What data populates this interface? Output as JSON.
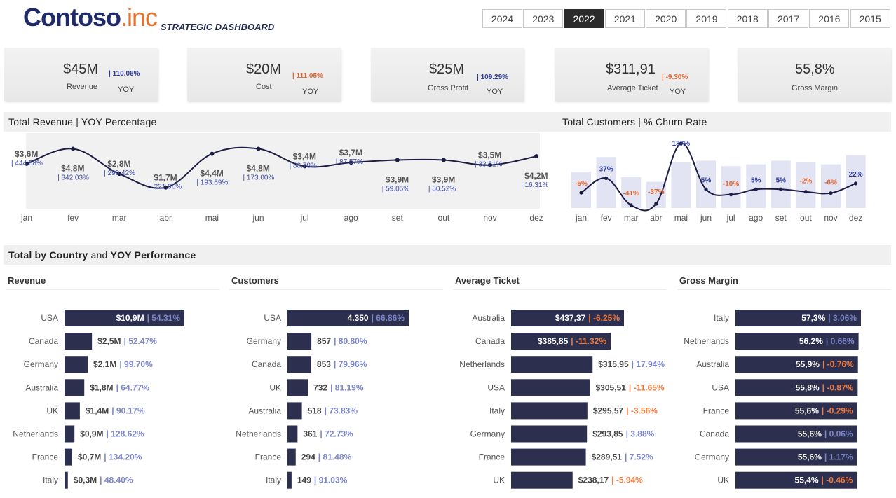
{
  "header": {
    "logo_brand": "Contoso",
    "logo_suffix": ".inc",
    "subtitle": "STRATEGIC DASHBOARD",
    "years": [
      "2024",
      "2023",
      "2022",
      "2021",
      "2020",
      "2019",
      "2018",
      "2017",
      "2016",
      "2015"
    ],
    "active_year": "2022"
  },
  "kpis": [
    {
      "value": "$45M",
      "label": "Revenue",
      "pct": "| 110.06%",
      "pct_dir": "pos",
      "yoy": "YOY"
    },
    {
      "value": "$20M",
      "label": "Cost",
      "pct": "| 111.05%",
      "pct_dir": "neg",
      "yoy": "YOY"
    },
    {
      "value": "$25M",
      "label": "Gross Profit",
      "pct": "| 109.29%",
      "pct_dir": "pos",
      "yoy": "YOY"
    },
    {
      "value": "$311,91",
      "label": "Average Ticket",
      "pct": "| -9.30%",
      "pct_dir": "neg",
      "yoy": "YOY"
    },
    {
      "value": "55,8%",
      "label": "Gross Margin"
    }
  ],
  "sections": {
    "revenue_title": "Total Revenue | YOY Percentage",
    "customers_title": "Total Customers | % Churn Rate",
    "country_title_bold1": "Total by Country",
    "country_title_mid": " and ",
    "country_title_bold2": "YOY Performance"
  },
  "colors": {
    "bar": "#2d2f4f",
    "pos": "#7b86c9",
    "neg": "#f07a3e",
    "line": "#1c1c45",
    "churn_bar": "#e2e4f4"
  },
  "chart_data": [
    {
      "type": "line",
      "title": "Total Revenue | YOY Percentage",
      "categories": [
        "jan",
        "fev",
        "mar",
        "abr",
        "mai",
        "jun",
        "jul",
        "ago",
        "set",
        "out",
        "nov",
        "dez"
      ],
      "values": [
        3.6,
        4.8,
        2.8,
        1.7,
        4.4,
        4.8,
        3.4,
        3.7,
        3.9,
        3.9,
        3.5,
        4.2
      ],
      "value_labels": [
        "$3,6M",
        "$4,8M",
        "$2,8M",
        "$1,7M",
        "$4,4M",
        "$4,8M",
        "$3,4M",
        "$3,7M",
        "$3,9M",
        "$3,9M",
        "$3,5M",
        "$4,2M"
      ],
      "yoy_labels": [
        "| 444.58%",
        "| 342.03%",
        "| 290.42%",
        "| 221.96%",
        "| 193.69%",
        "| 173.00%",
        "| 88.78%",
        "| 87.57%",
        "| 59.05%",
        "| 50.52%",
        "| 33.51%",
        "| 16.31%"
      ],
      "ylim": [
        0,
        5.5
      ]
    },
    {
      "type": "bar",
      "title": "Total Customers | % Churn Rate",
      "categories": [
        "jan",
        "fev",
        "mar",
        "abr",
        "mai",
        "jun",
        "jul",
        "ago",
        "set",
        "out",
        "nov",
        "dez"
      ],
      "customer_bars": [
        1.0,
        1.4,
        0.85,
        0.72,
        1.25,
        1.3,
        1.15,
        1.2,
        1.3,
        1.25,
        1.2,
        1.45
      ],
      "churn_pct": [
        -5,
        37,
        -41,
        -37,
        137,
        5,
        -10,
        5,
        5,
        -2,
        -6,
        22
      ],
      "churn_labels": [
        "-5%",
        "37%",
        "-41%",
        "-37%",
        "137%",
        "5%",
        "-10%",
        "5%",
        "5%",
        "-2%",
        "-6%",
        "22%"
      ]
    }
  ],
  "panels": [
    {
      "title": "Revenue",
      "rows": [
        {
          "name": "USA",
          "frac": 1.0,
          "val": "$10,9M",
          "pct": "| 54.31%",
          "dir": "pos"
        },
        {
          "name": "Canada",
          "frac": 0.229,
          "val": "$2,5M",
          "pct": "| 52.47%",
          "dir": "pos"
        },
        {
          "name": "Germany",
          "frac": 0.193,
          "val": "$2,1M",
          "pct": "| 99.70%",
          "dir": "pos"
        },
        {
          "name": "Australia",
          "frac": 0.165,
          "val": "$1,8M",
          "pct": "| 64.77%",
          "dir": "pos"
        },
        {
          "name": "UK",
          "frac": 0.128,
          "val": "$1,4M",
          "pct": "| 90.17%",
          "dir": "pos"
        },
        {
          "name": "Netherlands",
          "frac": 0.083,
          "val": "$0,9M",
          "pct": "| 128.62%",
          "dir": "pos"
        },
        {
          "name": "France",
          "frac": 0.064,
          "val": "$0,7M",
          "pct": "| 134.20%",
          "dir": "pos"
        },
        {
          "name": "Italy",
          "frac": 0.028,
          "val": "$0,3M",
          "pct": "| 48.40%",
          "dir": "pos"
        }
      ]
    },
    {
      "title": "Customers",
      "rows": [
        {
          "name": "USA",
          "frac": 1.0,
          "val": "4.350",
          "pct": "| 66.86%",
          "dir": "pos"
        },
        {
          "name": "Germany",
          "frac": 0.197,
          "val": "857",
          "pct": "| 80.80%",
          "dir": "pos"
        },
        {
          "name": "Canada",
          "frac": 0.196,
          "val": "853",
          "pct": "| 79.96%",
          "dir": "pos"
        },
        {
          "name": "UK",
          "frac": 0.168,
          "val": "732",
          "pct": "| 81.19%",
          "dir": "pos"
        },
        {
          "name": "Australia",
          "frac": 0.119,
          "val": "518",
          "pct": "| 73.83%",
          "dir": "pos"
        },
        {
          "name": "Netherlands",
          "frac": 0.083,
          "val": "361",
          "pct": "| 72.73%",
          "dir": "pos"
        },
        {
          "name": "France",
          "frac": 0.068,
          "val": "294",
          "pct": "| 81.48%",
          "dir": "pos"
        },
        {
          "name": "Italy",
          "frac": 0.034,
          "val": "149",
          "pct": "| 91.03%",
          "dir": "pos"
        }
      ]
    },
    {
      "title": "Average Ticket",
      "rows": [
        {
          "name": "Australia",
          "frac": 1.0,
          "val": "$437,37",
          "pct": "| -6.25%",
          "dir": "neg"
        },
        {
          "name": "Canada",
          "frac": 0.882,
          "val": "$385,85",
          "pct": "| -11.32%",
          "dir": "neg"
        },
        {
          "name": "Netherlands",
          "frac": 0.722,
          "val": "$315,95",
          "pct": "| 17.94%",
          "dir": "pos"
        },
        {
          "name": "USA",
          "frac": 0.699,
          "val": "$305,51",
          "pct": "| -11.65%",
          "dir": "neg"
        },
        {
          "name": "Italy",
          "frac": 0.676,
          "val": "$295,57",
          "pct": "| -3.56%",
          "dir": "neg"
        },
        {
          "name": "Germany",
          "frac": 0.672,
          "val": "$293,85",
          "pct": "| 3.88%",
          "dir": "pos"
        },
        {
          "name": "France",
          "frac": 0.662,
          "val": "$289,51",
          "pct": "| 7.52%",
          "dir": "pos"
        },
        {
          "name": "UK",
          "frac": 0.545,
          "val": "$238,17",
          "pct": "| -5.94%",
          "dir": "neg"
        }
      ]
    },
    {
      "title": "Gross Margin",
      "rows": [
        {
          "name": "Italy",
          "frac": 1.0,
          "val": "57,3%",
          "pct": "| 3.06%",
          "dir": "pos"
        },
        {
          "name": "Netherlands",
          "frac": 0.981,
          "val": "56,2%",
          "pct": "| 0.66%",
          "dir": "pos"
        },
        {
          "name": "Australia",
          "frac": 0.976,
          "val": "55,9%",
          "pct": "| -0.76%",
          "dir": "neg"
        },
        {
          "name": "USA",
          "frac": 0.974,
          "val": "55,8%",
          "pct": "| -0.87%",
          "dir": "neg"
        },
        {
          "name": "France",
          "frac": 0.97,
          "val": "55,6%",
          "pct": "| -0.29%",
          "dir": "neg"
        },
        {
          "name": "Canada",
          "frac": 0.97,
          "val": "55,6%",
          "pct": "| 0.06%",
          "dir": "pos"
        },
        {
          "name": "Germany",
          "frac": 0.97,
          "val": "55,6%",
          "pct": "| 1.17%",
          "dir": "pos"
        },
        {
          "name": "UK",
          "frac": 0.968,
          "val": "55,4%",
          "pct": "| -0.46%",
          "dir": "neg"
        }
      ]
    }
  ]
}
